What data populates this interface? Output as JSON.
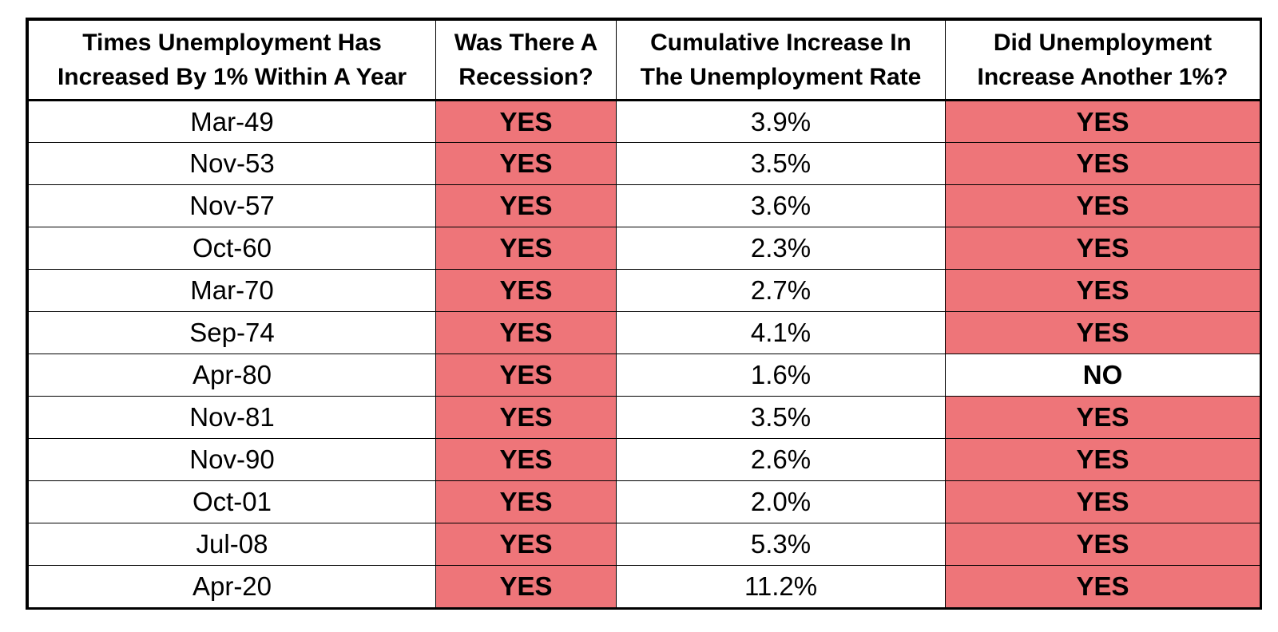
{
  "colors": {
    "yes_fill": "#ee7579",
    "no_fill": "#ffffff",
    "border": "#000000"
  },
  "chart_data": {
    "type": "table",
    "columns": [
      [
        "Times Unemployment Has",
        "Increased By 1% Within A Year"
      ],
      [
        "Was There A",
        "Recession?"
      ],
      [
        "Cumulative Increase In",
        "The Unemployment Rate"
      ],
      [
        "Did Unemployment",
        "Increase Another 1%?"
      ]
    ],
    "rows": [
      [
        "Mar-49",
        "YES",
        "3.9%",
        "YES"
      ],
      [
        "Nov-53",
        "YES",
        "3.5%",
        "YES"
      ],
      [
        "Nov-57",
        "YES",
        "3.6%",
        "YES"
      ],
      [
        "Oct-60",
        "YES",
        "2.3%",
        "YES"
      ],
      [
        "Mar-70",
        "YES",
        "2.7%",
        "YES"
      ],
      [
        "Sep-74",
        "YES",
        "4.1%",
        "YES"
      ],
      [
        "Apr-80",
        "YES",
        "1.6%",
        "NO"
      ],
      [
        "Nov-81",
        "YES",
        "3.5%",
        "YES"
      ],
      [
        "Nov-90",
        "YES",
        "2.6%",
        "YES"
      ],
      [
        "Oct-01",
        "YES",
        "2.0%",
        "YES"
      ],
      [
        "Jul-08",
        "YES",
        "5.3%",
        "YES"
      ],
      [
        "Apr-20",
        "YES",
        "11.2%",
        "YES"
      ]
    ]
  }
}
